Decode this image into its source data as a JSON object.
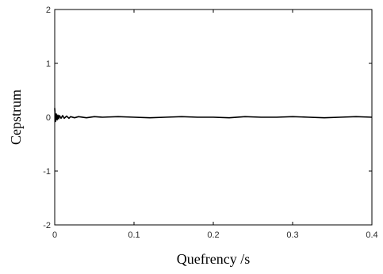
{
  "chart_data": {
    "type": "line",
    "xlabel": "Quefrency /s",
    "ylabel": "Cepstrum",
    "xlim": [
      0,
      0.4
    ],
    "ylim": [
      -2,
      2
    ],
    "x_ticks": [
      0,
      0.1,
      0.2,
      0.3,
      0.4
    ],
    "x_tick_labels": [
      "0",
      "0.1",
      "0.2",
      "0.3",
      "0.4"
    ],
    "y_ticks": [
      -2,
      -1,
      0,
      1,
      2
    ],
    "y_tick_labels": [
      "-2",
      "-1",
      "0",
      "1",
      "2"
    ],
    "grid": false,
    "legend": "none",
    "line_color": "#000000",
    "series": [
      {
        "x": [
          0,
          0.001,
          0.002,
          0.003,
          0.004,
          0.005,
          0.006,
          0.008,
          0.01,
          0.012,
          0.015,
          0.018,
          0.02,
          0.025,
          0.03,
          0.04,
          0.05,
          0.06,
          0.08,
          0.1,
          0.12,
          0.14,
          0.16,
          0.18,
          0.2,
          0.22,
          0.24,
          0.26,
          0.28,
          0.3,
          0.32,
          0.34,
          0.36,
          0.38,
          0.4
        ],
        "values": [
          0.17,
          -0.08,
          0.06,
          -0.05,
          0.04,
          -0.03,
          0.03,
          -0.02,
          0.03,
          -0.02,
          0.02,
          -0.02,
          0.01,
          -0.01,
          0.01,
          -0.01,
          0.01,
          0,
          0.01,
          0,
          -0.01,
          0,
          0.01,
          0,
          0,
          -0.01,
          0.01,
          0,
          0,
          0.01,
          0,
          -0.01,
          0,
          0.01,
          0
        ]
      }
    ]
  }
}
